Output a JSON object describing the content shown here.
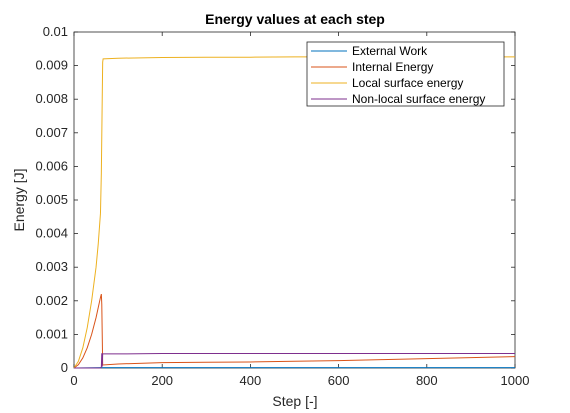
{
  "chart_data": {
    "type": "line",
    "title": "Energy values at each step",
    "xlabel": "Step [-]",
    "ylabel": "Energy [J]",
    "xlim": [
      0,
      1000
    ],
    "ylim": [
      0,
      0.01
    ],
    "xticks": [
      "0",
      "200",
      "400",
      "600",
      "800",
      "1000"
    ],
    "yticks": [
      "0",
      "0.001",
      "0.002",
      "0.003",
      "0.004",
      "0.005",
      "0.006",
      "0.007",
      "0.008",
      "0.009",
      "0.01"
    ],
    "grid": false,
    "legend_position": "top-right",
    "series": [
      {
        "name": "External Work",
        "color": "#0072BD",
        "x": [
          0,
          62,
          65,
          100,
          200,
          300,
          400,
          500,
          600,
          700,
          800,
          900,
          1000
        ],
        "y": [
          0,
          1e-05,
          1e-05,
          1e-05,
          1e-05,
          1e-05,
          1e-05,
          1e-05,
          1e-05,
          1e-05,
          1e-05,
          1e-05,
          1e-05
        ]
      },
      {
        "name": "Internal Energy",
        "color": "#D95319",
        "x": [
          0,
          10,
          20,
          30,
          40,
          50,
          55,
          60,
          62,
          63,
          64,
          65,
          100,
          200,
          300,
          400,
          500,
          600,
          700,
          800,
          900,
          1000
        ],
        "y": [
          0,
          0.0001,
          0.0003,
          0.0006,
          0.001,
          0.0015,
          0.0018,
          0.0021,
          0.0022,
          0.0019,
          0.001,
          9e-05,
          0.00012,
          0.00016,
          0.00017,
          0.00018,
          0.0002,
          0.00022,
          0.00025,
          0.00028,
          0.00031,
          0.00034
        ]
      },
      {
        "name": "Local surface energy",
        "color": "#EDB120",
        "x": [
          0,
          10,
          20,
          30,
          40,
          50,
          55,
          60,
          62,
          64,
          65,
          66,
          100,
          200,
          300,
          400,
          500,
          600,
          700,
          800,
          900,
          1000
        ],
        "y": [
          0,
          0.0002,
          0.0006,
          0.0012,
          0.002,
          0.003,
          0.0037,
          0.0046,
          0.0058,
          0.008,
          0.0091,
          0.0092,
          0.00922,
          0.00924,
          0.00925,
          0.00925,
          0.00926,
          0.00926,
          0.00926,
          0.00926,
          0.00926,
          0.00926
        ]
      },
      {
        "name": "Non-local surface energy",
        "color": "#7E2F8E",
        "x": [
          0,
          60,
          62,
          63,
          64,
          65,
          100,
          200,
          400,
          600,
          800,
          1000
        ],
        "y": [
          0,
          0,
          2e-05,
          0.00044,
          4e-05,
          0.00042,
          0.00042,
          0.00043,
          0.00043,
          0.00043,
          0.00043,
          0.00043
        ]
      }
    ]
  }
}
